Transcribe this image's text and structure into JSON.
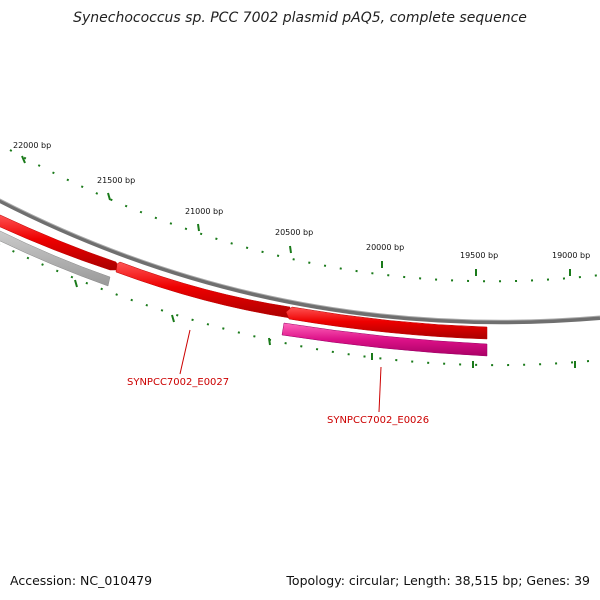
{
  "title": "Synechococcus sp. PCC 7002 plasmid pAQ5, complete sequence",
  "footer": {
    "accession": "Accession: NC_010479",
    "summary": "Topology: circular; Length: 38,515 bp; Genes: 39"
  },
  "ticks": [
    {
      "label": "22000 bp"
    },
    {
      "label": "21500 bp"
    },
    {
      "label": "21000 bp"
    },
    {
      "label": "20500 bp"
    },
    {
      "label": "20000 bp"
    },
    {
      "label": "19500 bp"
    },
    {
      "label": "19000 bp"
    }
  ],
  "genes": [
    {
      "label": "SYNPCC7002_E0027",
      "color": "#cc0000"
    },
    {
      "label": "SYNPCC7002_E0026",
      "color": "#cc0000"
    }
  ],
  "colors": {
    "backbone": "#777777",
    "forward_feature": "#ee0000",
    "reverse_feature": "#dd1188",
    "grey_feature": "#aaaaaa",
    "tick": "#006600",
    "label": "#cc0000"
  }
}
